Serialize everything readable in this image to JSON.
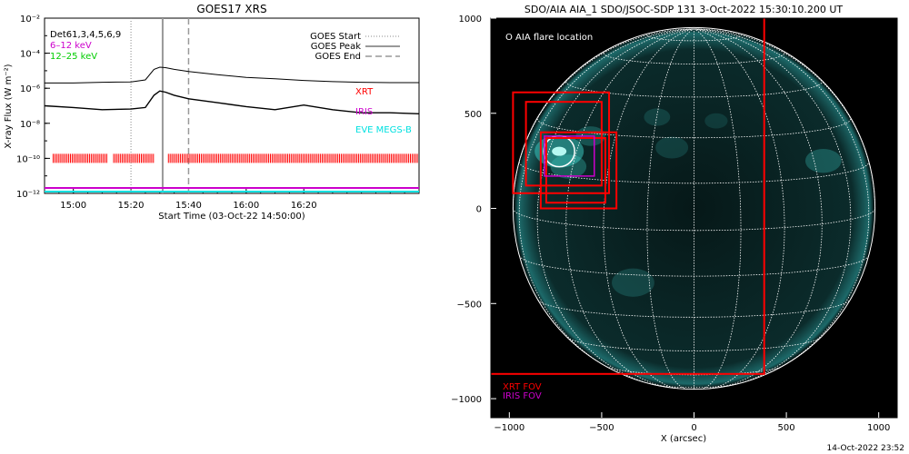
{
  "left_panel": {
    "title": "GOES17 XRS",
    "ylabel": "X-ray Flux (W m⁻²)",
    "xlabel": "Start Time (03-Oct-22 14:50:00)",
    "ytick_labels": [
      "10⁻²",
      "10⁻⁴",
      "10⁻⁶",
      "10⁻⁸",
      "10⁻¹⁰",
      "10⁻¹²"
    ],
    "xtick_labels": [
      "15:00",
      "15:20",
      "15:40",
      "16:00",
      "16:20"
    ],
    "legend_top_left": [
      {
        "text": "Det61,3,4,5,6,9",
        "color": "#000000"
      },
      {
        "text": "6–12 keV",
        "color": "#cc00cc"
      },
      {
        "text": "12–25 keV",
        "color": "#00cc00"
      }
    ],
    "legend_right": [
      {
        "text": "GOES Start",
        "style": "dotted"
      },
      {
        "text": "GOES Peak",
        "style": "solid"
      },
      {
        "text": "GOES End",
        "style": "dashed"
      }
    ],
    "instrument_labels": [
      {
        "text": "XRT",
        "color": "#ff0000"
      },
      {
        "text": "IRIS",
        "color": "#cc00cc"
      },
      {
        "text": "EVE MEGS-B",
        "color": "#00e0e0"
      }
    ]
  },
  "right_panel": {
    "title": "SDO/AIA AIA_1 SDO/JSOC-SDP 131  3-Oct-2022 15:30:10.200 UT",
    "flare_label": "O AIA flare location",
    "xlabel": "X (arcsec)",
    "xtick_labels": [
      "−1000",
      "−500",
      "0",
      "500",
      "1000"
    ],
    "ytick_labels": [
      "1000",
      "500",
      "0",
      "−500",
      "−1000"
    ],
    "fov_legend": [
      {
        "text": "XRT FOV",
        "color": "#ff0000"
      },
      {
        "text": "IRIS FOV",
        "color": "#cc00cc"
      }
    ],
    "timestamp": "14-Oct-2022 23:52"
  },
  "colors": {
    "xrt": "#ff0000",
    "iris": "#cc00cc",
    "eve": "#00e0e0",
    "sun_grid": "#ffffff",
    "sun_glow": "#0c3a3a"
  },
  "chart_data": [
    {
      "type": "line",
      "title": "GOES17 XRS",
      "xlabel": "Start Time (03-Oct-22 14:50:00)",
      "ylabel": "X-ray Flux (W m⁻²)",
      "yscale": "log",
      "xlim": [
        "14:50",
        "17:00"
      ],
      "ylim": [
        1e-12,
        0.01
      ],
      "x_minutes_since_start": [
        0,
        10,
        20,
        30,
        35,
        38,
        40,
        42,
        45,
        50,
        60,
        70,
        80,
        90,
        100,
        110,
        120,
        130
      ],
      "series": [
        {
          "name": "",
          "values": [
            2e-06,
            2e-06,
            2.2e-06,
            2.3e-06,
            3e-06,
            1.2e-05,
            1.6e-05,
            1.5e-05,
            1.2e-05,
            9e-06,
            6e-06,
            4.2e-06,
            3.5e-06,
            2.8e-06,
            2.4e-06,
            2.2e-06,
            2.1e-06,
            2.1e-06
          ]
        },
        {
          "name": "",
          "values": [
            1e-07,
            8e-08,
            6e-08,
            6.5e-08,
            8e-08,
            4e-07,
            7e-07,
            6e-07,
            4e-07,
            2.5e-07,
            1.5e-07,
            9e-08,
            6e-08,
            1.1e-07,
            6e-08,
            4e-08,
            4e-08,
            3.5e-08
          ]
        }
      ],
      "vlines": [
        {
          "label": "GOES Start",
          "time": "15:20",
          "style": "dotted"
        },
        {
          "label": "GOES Peak",
          "time": "15:31",
          "style": "solid"
        },
        {
          "label": "GOES End",
          "time": "15:40",
          "style": "dashed"
        }
      ],
      "coverage": [
        {
          "instrument": "XRT",
          "segments": [
            [
              "14:53",
              "15:12"
            ],
            [
              "15:14",
              "15:28"
            ],
            [
              "15:33",
              "17:00"
            ]
          ]
        },
        {
          "instrument": "IRIS",
          "segments": [
            [
              "14:50",
              "17:00"
            ]
          ]
        },
        {
          "instrument": "EVE MEGS-B",
          "segments": [
            [
              "14:50",
              "17:00"
            ]
          ]
        }
      ]
    },
    {
      "type": "scatter",
      "title": "SDO/AIA AIA_1 SDO/JSOC-SDP 131  3-Oct-2022 15:30:10.200 UT",
      "xlabel": "X (arcsec)",
      "xlim": [
        -1100,
        1100
      ],
      "ylim": [
        -1100,
        1000
      ],
      "solar_radius_arcsec": 980,
      "flare_location": [
        -730,
        300
      ],
      "fov_boxes": [
        {
          "name": "XRT FOV",
          "x_range": [
            -1110,
            380
          ],
          "y_range": [
            -870,
            1100
          ]
        },
        {
          "name": "XRT FOV",
          "x_range": [
            -980,
            -460
          ],
          "y_range": [
            80,
            610
          ]
        },
        {
          "name": "XRT FOV",
          "x_range": [
            -910,
            -500
          ],
          "y_range": [
            120,
            560
          ]
        },
        {
          "name": "XRT FOV",
          "x_range": [
            -830,
            -420
          ],
          "y_range": [
            0,
            400
          ]
        },
        {
          "name": "XRT FOV",
          "x_range": [
            -800,
            -480
          ],
          "y_range": [
            30,
            370
          ]
        },
        {
          "name": "IRIS FOV",
          "x_range": [
            -810,
            -540
          ],
          "y_range": [
            170,
            380
          ]
        }
      ]
    }
  ]
}
